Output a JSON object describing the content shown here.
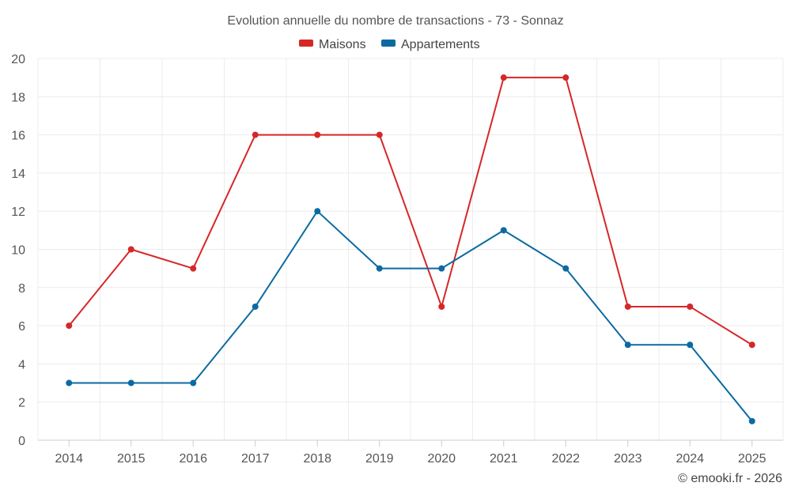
{
  "chart_data": {
    "type": "line",
    "title": "Evolution annuelle du nombre de transactions - 73 - Sonnaz",
    "categories": [
      "2014",
      "2015",
      "2016",
      "2017",
      "2018",
      "2019",
      "2020",
      "2021",
      "2022",
      "2023",
      "2024",
      "2025"
    ],
    "series": [
      {
        "name": "Maisons",
        "color": "#d62728",
        "values": [
          6,
          10,
          9,
          16,
          16,
          16,
          7,
          19,
          19,
          7,
          7,
          5
        ]
      },
      {
        "name": "Appartements",
        "color": "#0b6aa2",
        "values": [
          3,
          3,
          3,
          7,
          12,
          9,
          9,
          11,
          9,
          5,
          5,
          1
        ]
      }
    ],
    "ylim": [
      0,
      20
    ],
    "yticks": [
      "0",
      "2",
      "4",
      "6",
      "8",
      "10",
      "12",
      "14",
      "16",
      "18",
      "20"
    ],
    "grid": true,
    "legend": "top-center",
    "xlabel": "",
    "ylabel": ""
  },
  "credit": "© emooki.fr - 2026"
}
